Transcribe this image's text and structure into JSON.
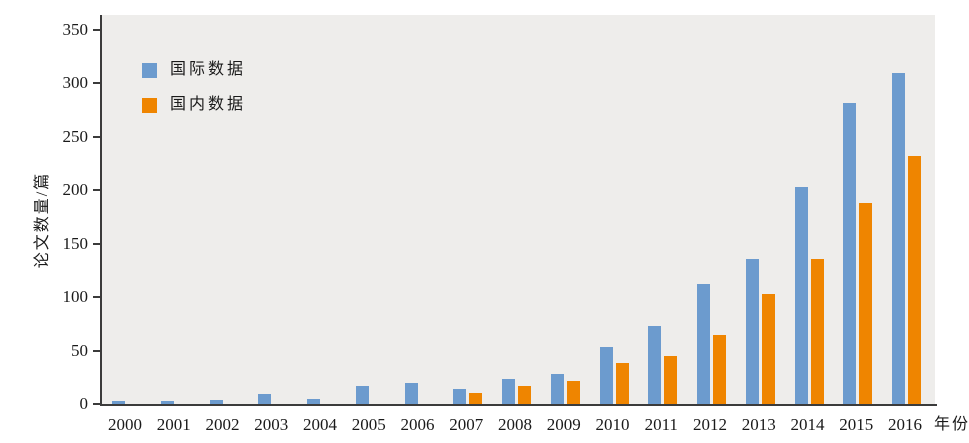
{
  "chart_data": {
    "type": "bar",
    "title": "",
    "ylabel": "论文数量/篇",
    "xlabel": "年份",
    "categories": [
      "2000",
      "2001",
      "2002",
      "2003",
      "2004",
      "2005",
      "2006",
      "2007",
      "2008",
      "2009",
      "2010",
      "2011",
      "2012",
      "2013",
      "2014",
      "2015",
      "2016"
    ],
    "series": [
      {
        "name": "国际数据",
        "color": "#6c9bce",
        "values": [
          3,
          3,
          4,
          9,
          5,
          17,
          20,
          14,
          23,
          28,
          53,
          73,
          112,
          136,
          203,
          282,
          310
        ]
      },
      {
        "name": "国内数据",
        "color": "#ef8500",
        "values": [
          null,
          null,
          null,
          null,
          null,
          null,
          null,
          10,
          17,
          22,
          38,
          45,
          65,
          103,
          136,
          188,
          232
        ]
      }
    ],
    "ylim": [
      0,
      350
    ],
    "yticks": [
      0,
      50,
      100,
      150,
      200,
      250,
      300,
      350
    ],
    "grid": false,
    "legend_position": "inside-top-left",
    "plot_background": "#eeedeb",
    "axis_color": "#3b3b3b"
  }
}
